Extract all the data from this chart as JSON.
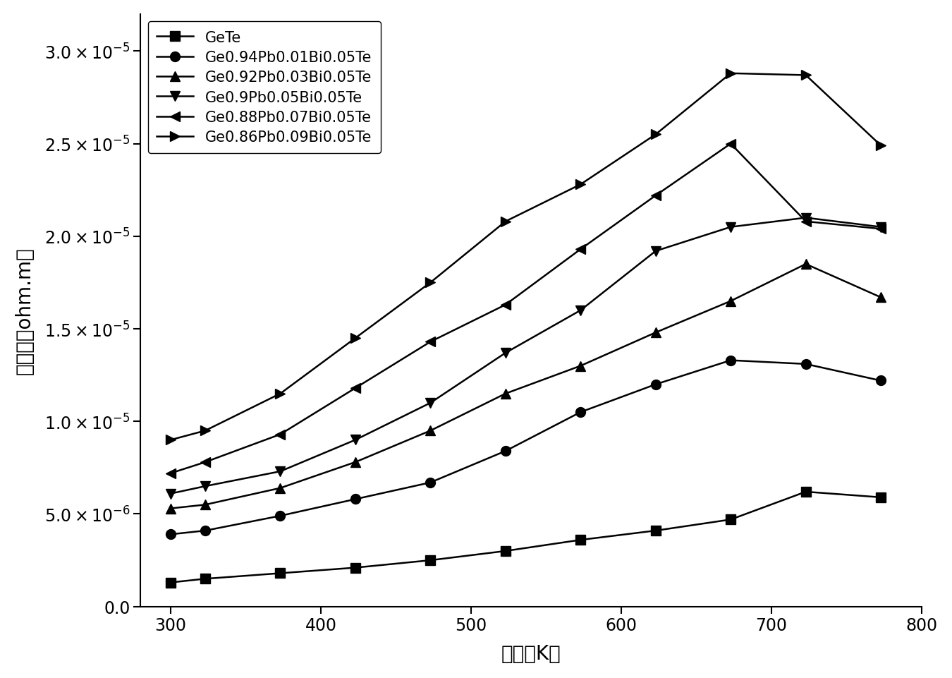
{
  "series": [
    {
      "label": "GeTe",
      "marker": "s",
      "x": [
        300,
        323,
        373,
        423,
        473,
        523,
        573,
        623,
        673,
        723,
        773
      ],
      "y": [
        1.3e-06,
        1.5e-06,
        1.8e-06,
        2.1e-06,
        2.5e-06,
        3e-06,
        3.6e-06,
        4.1e-06,
        4.7e-06,
        6.2e-06,
        5.9e-06
      ]
    },
    {
      "label": "Ge0.94Pb0.01Bi0.05Te",
      "marker": "o",
      "x": [
        300,
        323,
        373,
        423,
        473,
        523,
        573,
        623,
        673,
        723,
        773
      ],
      "y": [
        3.9e-06,
        4.1e-06,
        4.9e-06,
        5.8e-06,
        6.7e-06,
        8.4e-06,
        1.05e-05,
        1.2e-05,
        1.33e-05,
        1.31e-05,
        1.22e-05
      ]
    },
    {
      "label": "Ge0.92Pb0.03Bi0.05Te",
      "marker": "^",
      "x": [
        300,
        323,
        373,
        423,
        473,
        523,
        573,
        623,
        673,
        723,
        773
      ],
      "y": [
        5.3e-06,
        5.5e-06,
        6.4e-06,
        7.8e-06,
        9.5e-06,
        1.15e-05,
        1.3e-05,
        1.48e-05,
        1.65e-05,
        1.85e-05,
        1.67e-05
      ]
    },
    {
      "label": "Ge0.9Pb0.05Bi0.05Te",
      "marker": "v",
      "x": [
        300,
        323,
        373,
        423,
        473,
        523,
        573,
        623,
        673,
        723,
        773
      ],
      "y": [
        6.1e-06,
        6.5e-06,
        7.3e-06,
        9e-06,
        1.1e-05,
        1.37e-05,
        1.6e-05,
        1.92e-05,
        2.05e-05,
        2.1e-05,
        2.05e-05
      ]
    },
    {
      "label": "Ge0.88Pb0.07Bi0.05Te",
      "marker": "<",
      "x": [
        300,
        323,
        373,
        423,
        473,
        523,
        573,
        623,
        673,
        723,
        773
      ],
      "y": [
        7.2e-06,
        7.8e-06,
        9.3e-06,
        1.18e-05,
        1.43e-05,
        1.63e-05,
        1.93e-05,
        2.22e-05,
        2.5e-05,
        2.08e-05,
        2.04e-05
      ]
    },
    {
      "label": "Ge0.86Pb0.09Bi0.05Te",
      "marker": ">",
      "x": [
        300,
        323,
        373,
        423,
        473,
        523,
        573,
        623,
        673,
        723,
        773
      ],
      "y": [
        9e-06,
        9.5e-06,
        1.15e-05,
        1.45e-05,
        1.75e-05,
        2.08e-05,
        2.28e-05,
        2.55e-05,
        2.88e-05,
        2.87e-05,
        2.49e-05
      ]
    }
  ],
  "xlabel": "温度（K）",
  "ylabel": "电阱率（ohm.m）",
  "xlim": [
    280,
    800
  ],
  "ylim": [
    0,
    3.2e-05
  ],
  "xticks": [
    300,
    400,
    500,
    600,
    700,
    800
  ],
  "yticks": [
    0.0,
    5e-06,
    1e-05,
    1.5e-05,
    2e-05,
    2.5e-05,
    3e-05
  ],
  "color": "#000000",
  "linewidth": 1.8,
  "markersize": 10,
  "legend_loc": "upper left",
  "legend_fontsize": 15,
  "axis_fontsize": 20,
  "tick_fontsize": 17
}
